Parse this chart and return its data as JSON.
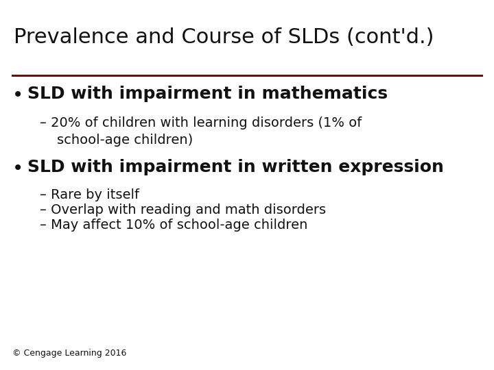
{
  "title": "Prevalence and Course of SLDs (cont'd.)",
  "title_fontsize": 22,
  "title_color": "#111111",
  "background_color": "#ffffff",
  "line_color": "#8b0000",
  "bullet1": "SLD with impairment in mathematics",
  "bullet1_fontsize": 18,
  "sub1a_line1": "– 20% of children with learning disorders (1% of",
  "sub1a_line2": "    school-age children)",
  "sub_fontsize": 14,
  "bullet2": "SLD with impairment in written expression",
  "bullet2_fontsize": 18,
  "sub2a": "– Rare by itself",
  "sub2b": "– Overlap with reading and math disorders",
  "sub2c": "– May affect 10% of school-age children",
  "footer": "© Cengage Learning 2016",
  "footer_fontsize": 9,
  "text_color": "#111111",
  "bullet_dot_fontsize": 20
}
